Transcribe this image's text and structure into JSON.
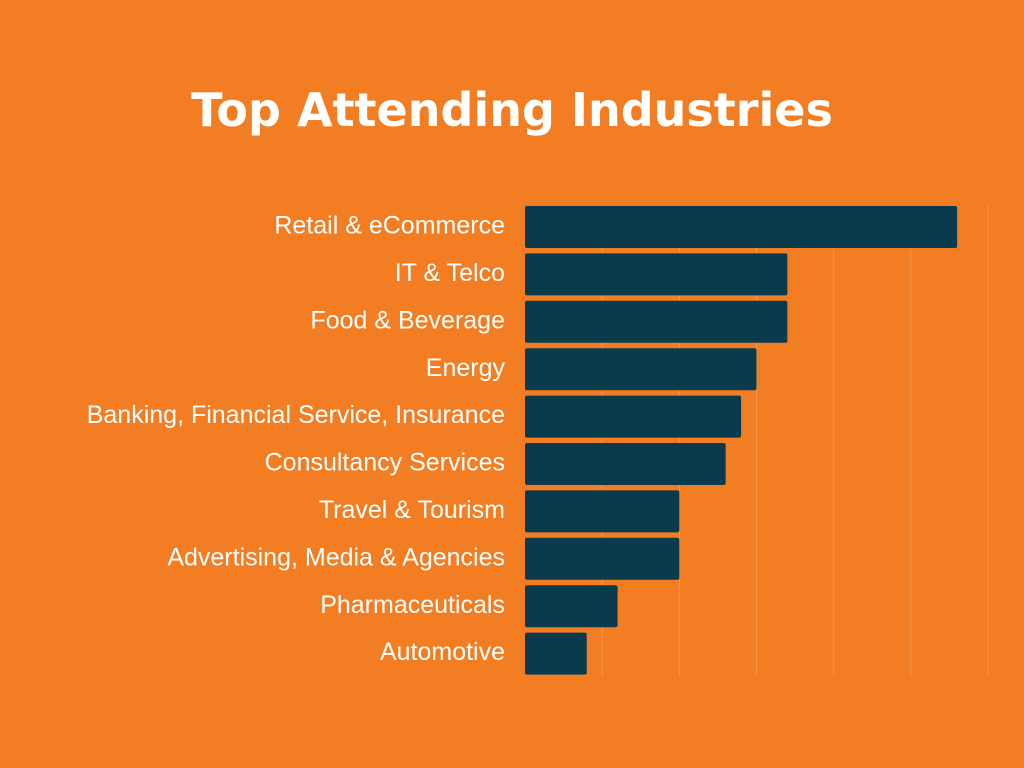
{
  "chart_data": {
    "type": "bar",
    "orientation": "horizontal",
    "title": "Top Attending Industries",
    "xlabel": "",
    "ylabel": "",
    "categories": [
      "Retail & eCommerce",
      "IT & Telco",
      "Food & Beverage",
      "Energy",
      "Banking, Financial Service, Insurance",
      "Consultancy Services",
      "Travel & Tourism",
      "Advertising, Media & Agencies",
      "Pharmaceuticals",
      "Automotive"
    ],
    "values": [
      28,
      17,
      17,
      15,
      14,
      13,
      10,
      10,
      6,
      4
    ],
    "xlim": [
      0,
      30
    ],
    "grid": true,
    "tick_labels_shown": false,
    "legend": "none"
  },
  "colors": {
    "background": "#F27D22",
    "bar": "#093B4D",
    "text": "#FFFFFF",
    "grid": "#F59552"
  }
}
